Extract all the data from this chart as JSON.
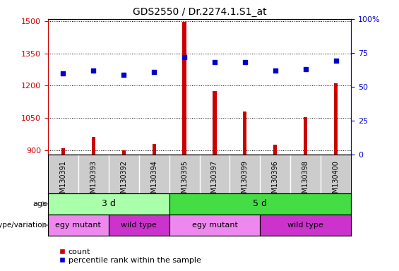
{
  "title": "GDS2550 / Dr.2274.1.S1_at",
  "samples": [
    "GSM130391",
    "GSM130393",
    "GSM130392",
    "GSM130394",
    "GSM130395",
    "GSM130397",
    "GSM130399",
    "GSM130396",
    "GSM130398",
    "GSM130400"
  ],
  "counts": [
    910,
    960,
    900,
    930,
    1495,
    1175,
    1080,
    925,
    1055,
    1210
  ],
  "percentiles": [
    60,
    62,
    59,
    61,
    72,
    68,
    68,
    62,
    63,
    69
  ],
  "ylim_left": [
    880,
    1510
  ],
  "ylim_right": [
    0,
    100
  ],
  "yticks_left": [
    900,
    1050,
    1200,
    1350,
    1500
  ],
  "yticks_right": [
    0,
    25,
    50,
    75,
    100
  ],
  "bar_color": "#cc0000",
  "dot_color": "#0000cc",
  "age_groups": [
    {
      "label": "3 d",
      "start": 0,
      "end": 4,
      "color": "#aaffaa"
    },
    {
      "label": "5 d",
      "start": 4,
      "end": 10,
      "color": "#44dd44"
    }
  ],
  "genotype_groups": [
    {
      "label": "egy mutant",
      "start": 0,
      "end": 2,
      "color": "#ee88ee"
    },
    {
      "label": "wild type",
      "start": 2,
      "end": 4,
      "color": "#cc33cc"
    },
    {
      "label": "egy mutant",
      "start": 4,
      "end": 7,
      "color": "#ee88ee"
    },
    {
      "label": "wild type",
      "start": 7,
      "end": 10,
      "color": "#cc33cc"
    }
  ],
  "left_axis_color": "#cc0000",
  "right_axis_color": "#0000cc",
  "age_label": "age",
  "genotype_label": "genotype/variation",
  "legend_count": "count",
  "legend_pct": "percentile rank within the sample",
  "bg_color": "#ffffff",
  "tick_area_color": "#cccccc"
}
